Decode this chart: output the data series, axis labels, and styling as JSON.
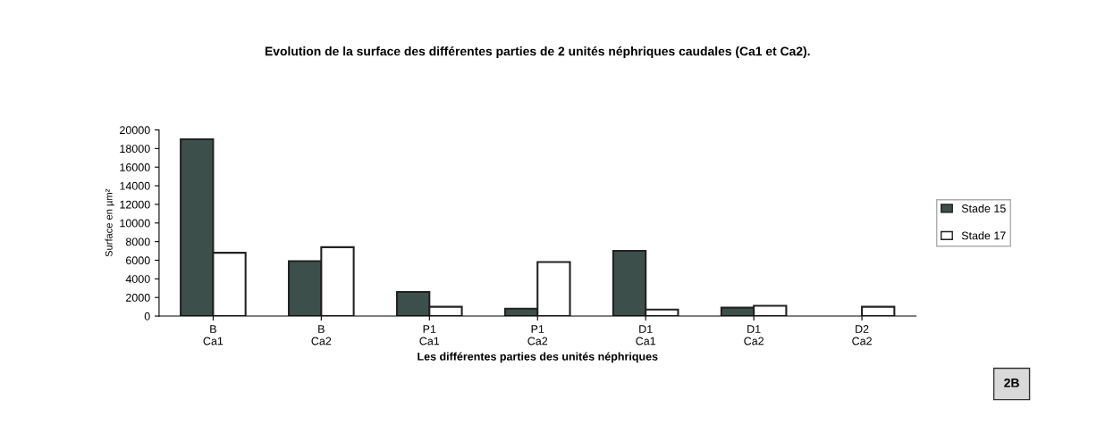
{
  "chart_data": {
    "type": "bar",
    "title": "Evolution de la surface des différentes parties de 2 unités néphriques caudales (Ca1 et Ca2).",
    "xlabel": "Les différentes parties des unités néphriques",
    "ylabel": "Surface en µm²",
    "categories": [
      "B\nCa1",
      "B\nCa2",
      "P1\nCa1",
      "P1\nCa2",
      "D1\nCa1",
      "D1\nCa2",
      "D2\nCa2"
    ],
    "series": [
      {
        "name": "Stade 15",
        "color": "#3d4f4a",
        "values": [
          19000,
          5900,
          2600,
          800,
          7000,
          900,
          null
        ]
      },
      {
        "name": "Stade 17",
        "color": "#ffffff",
        "values": [
          6800,
          7400,
          1000,
          5800,
          700,
          1100,
          1000
        ]
      }
    ],
    "ylim": [
      0,
      20000
    ],
    "yticks": [
      0,
      2000,
      4000,
      6000,
      8000,
      10000,
      12000,
      14000,
      16000,
      18000,
      20000
    ],
    "grid": false,
    "legend": "right",
    "annotations": [
      "2B"
    ]
  }
}
